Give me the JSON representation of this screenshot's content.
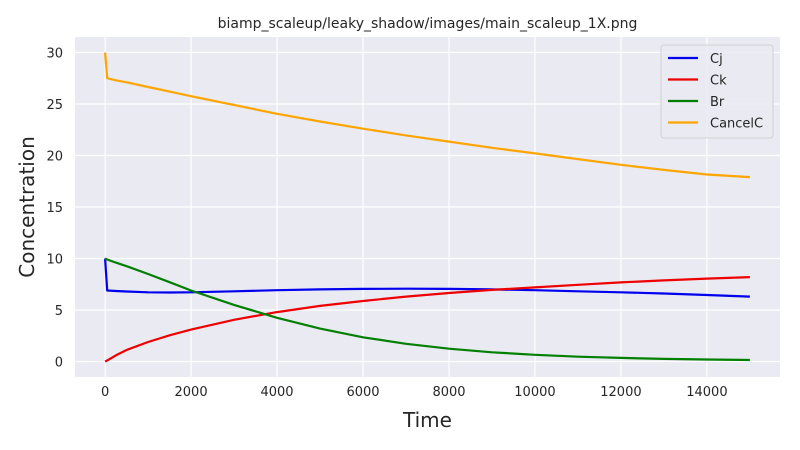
{
  "chart_data": {
    "type": "line",
    "title": "biamp_scaleup/leaky_shadow/images/main_scaleup_1X.png",
    "xlabel": "Time",
    "ylabel": "Concentration",
    "xlim": [
      -700,
      15700
    ],
    "ylim": [
      -1.5,
      31.5
    ],
    "xticks": [
      0,
      2000,
      4000,
      6000,
      8000,
      10000,
      12000,
      14000
    ],
    "yticks": [
      0,
      5,
      10,
      15,
      20,
      25,
      30
    ],
    "grid": true,
    "legend_position": "top-right",
    "x": [
      0,
      50,
      250,
      500,
      1000,
      1500,
      2000,
      3000,
      4000,
      5000,
      6000,
      7000,
      8000,
      9000,
      10000,
      11000,
      12000,
      13000,
      14000,
      15000
    ],
    "series": [
      {
        "name": "Cj",
        "color": "#0000ee",
        "values": [
          10,
          6.9,
          6.85,
          6.8,
          6.72,
          6.7,
          6.72,
          6.82,
          6.92,
          7.0,
          7.05,
          7.07,
          7.05,
          7.0,
          6.92,
          6.82,
          6.72,
          6.6,
          6.46,
          6.3
        ]
      },
      {
        "name": "Ck",
        "color": "#ee0000",
        "values": [
          0,
          0.1,
          0.6,
          1.12,
          1.9,
          2.55,
          3.1,
          4.05,
          4.8,
          5.4,
          5.88,
          6.3,
          6.65,
          6.95,
          7.2,
          7.45,
          7.68,
          7.88,
          8.05,
          8.2
        ]
      },
      {
        "name": "Br",
        "color": "#008000",
        "values": [
          10,
          9.9,
          9.6,
          9.25,
          8.5,
          7.7,
          6.9,
          5.5,
          4.25,
          3.2,
          2.35,
          1.72,
          1.25,
          0.9,
          0.65,
          0.47,
          0.35,
          0.26,
          0.2,
          0.15
        ]
      },
      {
        "name": "CancelC",
        "color": "#ffa500",
        "values": [
          30,
          27.5,
          27.3,
          27.1,
          26.65,
          26.2,
          25.75,
          24.9,
          24.05,
          23.3,
          22.6,
          21.95,
          21.35,
          20.75,
          20.2,
          19.65,
          19.1,
          18.6,
          18.15,
          17.9
        ]
      }
    ]
  }
}
